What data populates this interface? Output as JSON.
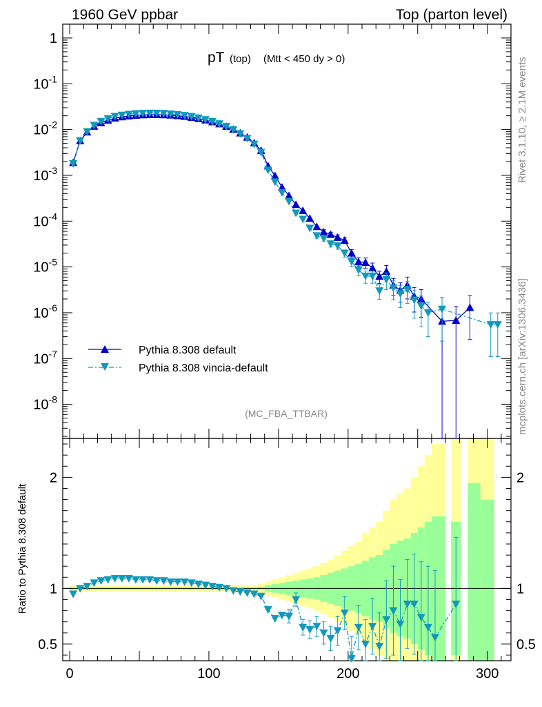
{
  "header": {
    "left_label": "1960 GeV ppbar",
    "right_label": "Top (parton level)"
  },
  "side_labels": {
    "rivet": "Rivet 3.1.10, ≥ 2.1M events",
    "mcplots": "mcplots.cern.ch [arXiv:1306.3436]"
  },
  "main_title": {
    "main": "pT",
    "sub1": "(top)",
    "sub2": "(Mtt < 450 dy > 0)"
  },
  "analysis_label": "(MC_FBA_TTBAR)",
  "ratio_ylabel": "Ratio to Pythia 8.308 default",
  "legend": [
    {
      "label": "Pythia 8.308 default",
      "color": "#0000cc",
      "marker": "triangle-up",
      "line": "solid"
    },
    {
      "label": "Pythia 8.308 vincia-default",
      "color": "#1199bb",
      "marker": "triangle-down",
      "line": "dash-dot"
    }
  ],
  "colors": {
    "default": "#0000cc",
    "vincia": "#1199bb",
    "band_outer": "#ffff99",
    "band_inner": "#99ff99"
  },
  "chart_data": [
    {
      "type": "line",
      "panel": "main",
      "yscale": "log",
      "xlim": [
        -5,
        317
      ],
      "ylim": [
        1.8e-09,
        2.0
      ],
      "y_tick_labels": [
        "1",
        "10^-1",
        "10^-2",
        "10^-3",
        "10^-4",
        "10^-5",
        "10^-6",
        "10^-7",
        "10^-8"
      ],
      "x": [
        2.5,
        7.5,
        12.5,
        17.5,
        22.5,
        27.5,
        32.5,
        37.5,
        42.5,
        47.5,
        52.5,
        57.5,
        62.5,
        67.5,
        72.5,
        77.5,
        82.5,
        87.5,
        92.5,
        97.5,
        102.5,
        107.5,
        112.5,
        117.5,
        122.5,
        127.5,
        132.5,
        137.5,
        142.5,
        147.5,
        152.5,
        157.5,
        162.5,
        167.5,
        172.5,
        177.5,
        182.5,
        187.5,
        192.5,
        197.5,
        202.5,
        207.5,
        212.5,
        217.5,
        222.5,
        227.5,
        232.5,
        237.5,
        242.5,
        247.5,
        252.5,
        257.5,
        262.5,
        267.5,
        277.5,
        287.5,
        292.5,
        297.5,
        302.5,
        307.5
      ],
      "series": [
        {
          "name": "Pythia 8.308 default",
          "y": [
            0.0019,
            0.0057,
            0.0088,
            0.0118,
            0.0141,
            0.016,
            0.0177,
            0.0189,
            0.0198,
            0.0205,
            0.0209,
            0.0212,
            0.0212,
            0.021,
            0.0206,
            0.02,
            0.0193,
            0.0184,
            0.0173,
            0.0161,
            0.0147,
            0.0133,
            0.0117,
            0.0101,
            0.0084,
            0.0068,
            0.0051,
            0.0035,
            0.0016,
            0.00098,
            0.00055,
            0.00036,
            0.00023,
            0.00017,
            0.000115,
            7.6e-05,
            5.8e-05,
            5.1e-05,
            4.4e-05,
            3.8e-05,
            2e-05,
            1.3e-05,
            1.25e-05,
            9.5e-06,
            6.2e-06,
            8e-06,
            4e-06,
            3.1e-06,
            4e-06,
            2.3e-06,
            2e-06,
            null,
            null,
            6.5e-07,
            6.8e-07,
            1.3e-06,
            null,
            null,
            null,
            null
          ],
          "err": [
            0.02,
            0.02,
            0.02,
            0.02,
            0.02,
            0.02,
            0.02,
            0.02,
            0.02,
            0.02,
            0.02,
            0.02,
            0.02,
            0.02,
            0.02,
            0.02,
            0.02,
            0.02,
            0.02,
            0.02,
            0.02,
            0.02,
            0.02,
            0.02,
            0.02,
            0.02,
            0.02,
            0.02,
            0.03,
            0.03,
            0.04,
            0.05,
            0.06,
            0.07,
            0.08,
            0.1,
            0.12,
            0.12,
            0.14,
            0.15,
            0.2,
            0.22,
            0.25,
            0.28,
            0.3,
            0.35,
            0.4,
            0.45,
            0.5,
            0.55,
            0.6,
            null,
            null,
            1.0,
            1.0,
            0.8,
            null,
            null,
            null,
            null
          ]
        },
        {
          "name": "Pythia 8.308 vincia-default",
          "y": [
            0.0018,
            0.0057,
            0.009,
            0.0124,
            0.0151,
            0.0173,
            0.0194,
            0.0206,
            0.0216,
            0.0222,
            0.0226,
            0.0228,
            0.0228,
            0.0225,
            0.0219,
            0.0212,
            0.0204,
            0.0193,
            0.018,
            0.0165,
            0.015,
            0.0134,
            0.0117,
            0.0099,
            0.0081,
            0.0064,
            0.0048,
            0.0032,
            0.0013,
            0.00072,
            0.00042,
            0.00027,
            0.00015,
            0.00011,
            7e-05,
            4.8e-05,
            4.2e-05,
            3.2e-05,
            2.9e-05,
            2e-05,
            1.3e-05,
            8.5e-06,
            6.3e-06,
            6.3e-06,
            3e-06,
            5.3e-06,
            3.5e-06,
            2.6e-06,
            3.2e-06,
            1.9e-06,
            1.4e-06,
            1e-06,
            null,
            1.2e-06,
            null,
            null,
            null,
            null,
            5.5e-07,
            5.5e-07
          ],
          "err": [
            0.02,
            0.02,
            0.02,
            0.02,
            0.02,
            0.02,
            0.02,
            0.02,
            0.02,
            0.02,
            0.02,
            0.02,
            0.02,
            0.02,
            0.02,
            0.02,
            0.02,
            0.02,
            0.02,
            0.02,
            0.02,
            0.02,
            0.02,
            0.02,
            0.02,
            0.02,
            0.02,
            0.02,
            0.03,
            0.04,
            0.05,
            0.06,
            0.08,
            0.09,
            0.1,
            0.12,
            0.13,
            0.15,
            0.16,
            0.18,
            0.22,
            0.25,
            0.3,
            0.3,
            0.35,
            0.4,
            0.45,
            0.5,
            0.5,
            0.6,
            0.65,
            0.7,
            null,
            0.8,
            null,
            null,
            null,
            null,
            0.8,
            0.8
          ]
        }
      ]
    },
    {
      "type": "line",
      "panel": "ratio",
      "yscale": "linear",
      "xlim": [
        -5,
        317
      ],
      "ylim": [
        0.35,
        2.35
      ],
      "x_ticks": [
        0,
        100,
        200,
        300
      ],
      "y_ticks": [
        0.5,
        1,
        2
      ],
      "band_edges": [
        0,
        5,
        10,
        15,
        20,
        25,
        30,
        35,
        40,
        45,
        50,
        55,
        60,
        65,
        70,
        75,
        80,
        85,
        90,
        95,
        100,
        105,
        110,
        115,
        120,
        125,
        130,
        135,
        140,
        145,
        150,
        155,
        160,
        165,
        170,
        175,
        180,
        185,
        190,
        195,
        200,
        205,
        210,
        215,
        220,
        225,
        230,
        235,
        240,
        245,
        250,
        255,
        260,
        265,
        270
      ],
      "band_inner": [
        0.01,
        0.01,
        0.01,
        0.01,
        0.01,
        0.01,
        0.01,
        0.01,
        0.01,
        0.01,
        0.01,
        0.01,
        0.01,
        0.01,
        0.01,
        0.01,
        0.01,
        0.01,
        0.01,
        0.01,
        0.01,
        0.01,
        0.01,
        0.01,
        0.01,
        0.01,
        0.01,
        0.015,
        0.03,
        0.04,
        0.05,
        0.06,
        0.07,
        0.08,
        0.09,
        0.1,
        0.12,
        0.14,
        0.16,
        0.18,
        0.2,
        0.22,
        0.25,
        0.28,
        0.3,
        0.35,
        0.4,
        0.43,
        0.45,
        0.5,
        0.55,
        0.6,
        0.65,
        0.65
      ],
      "band_outer": [
        0.03,
        0.03,
        0.03,
        0.03,
        0.03,
        0.03,
        0.03,
        0.03,
        0.03,
        0.03,
        0.03,
        0.03,
        0.03,
        0.03,
        0.03,
        0.03,
        0.03,
        0.03,
        0.03,
        0.03,
        0.03,
        0.03,
        0.03,
        0.03,
        0.03,
        0.03,
        0.03,
        0.04,
        0.06,
        0.08,
        0.1,
        0.12,
        0.14,
        0.16,
        0.18,
        0.2,
        0.23,
        0.26,
        0.3,
        0.34,
        0.38,
        0.42,
        0.5,
        0.55,
        0.6,
        0.7,
        0.8,
        0.86,
        0.9,
        1.0,
        1.1,
        1.2,
        1.3,
        1.3
      ],
      "band_extra": [
        {
          "x0": 274,
          "x1": 281,
          "inner": 0.6,
          "outer": 2.0
        },
        {
          "x0": 286,
          "x1": 295,
          "inner": 0.95,
          "outer": 2.0
        },
        {
          "x0": 295,
          "x1": 305,
          "inner": 0.8,
          "outer": 2.0
        }
      ],
      "series": [
        {
          "name": "Pythia 8.308 vincia-default",
          "x": [
            2.5,
            7.5,
            12.5,
            17.5,
            22.5,
            27.5,
            32.5,
            37.5,
            42.5,
            47.5,
            52.5,
            57.5,
            62.5,
            67.5,
            72.5,
            77.5,
            82.5,
            87.5,
            92.5,
            97.5,
            102.5,
            107.5,
            112.5,
            117.5,
            122.5,
            127.5,
            132.5,
            137.5,
            142.5,
            147.5,
            152.5,
            157.5,
            162.5,
            167.5,
            172.5,
            177.5,
            182.5,
            187.5,
            192.5,
            197.5,
            202.5,
            207.5,
            212.5,
            217.5,
            222.5,
            227.5,
            232.5,
            237.5,
            242.5,
            247.5,
            252.5,
            257.5,
            262.5,
            277.5
          ],
          "y": [
            0.95,
            1.0,
            1.02,
            1.05,
            1.07,
            1.08,
            1.09,
            1.09,
            1.09,
            1.08,
            1.08,
            1.08,
            1.07,
            1.07,
            1.06,
            1.06,
            1.06,
            1.05,
            1.04,
            1.03,
            1.02,
            1.01,
            1.0,
            0.98,
            0.97,
            0.96,
            0.95,
            0.93,
            0.81,
            0.73,
            0.76,
            0.75,
            0.9,
            0.65,
            0.63,
            0.66,
            0.6,
            0.55,
            0.62,
            0.78,
            0.37,
            0.65,
            0.5,
            0.66,
            0.48,
            0.72,
            0.8,
            0.68,
            0.86,
            0.86,
            0.74,
            0.65,
            0.56,
            0.86
          ],
          "err": [
            0.02,
            0.02,
            0.02,
            0.02,
            0.02,
            0.02,
            0.02,
            0.02,
            0.02,
            0.02,
            0.02,
            0.02,
            0.02,
            0.02,
            0.02,
            0.02,
            0.02,
            0.02,
            0.02,
            0.02,
            0.02,
            0.02,
            0.02,
            0.02,
            0.02,
            0.02,
            0.02,
            0.02,
            0.03,
            0.04,
            0.05,
            0.06,
            0.06,
            0.07,
            0.08,
            0.09,
            0.1,
            0.11,
            0.13,
            0.15,
            0.2,
            0.2,
            0.22,
            0.25,
            0.3,
            0.35,
            0.4,
            0.4,
            0.4,
            0.45,
            0.5,
            0.55,
            0.6,
            0.6
          ]
        }
      ]
    }
  ]
}
